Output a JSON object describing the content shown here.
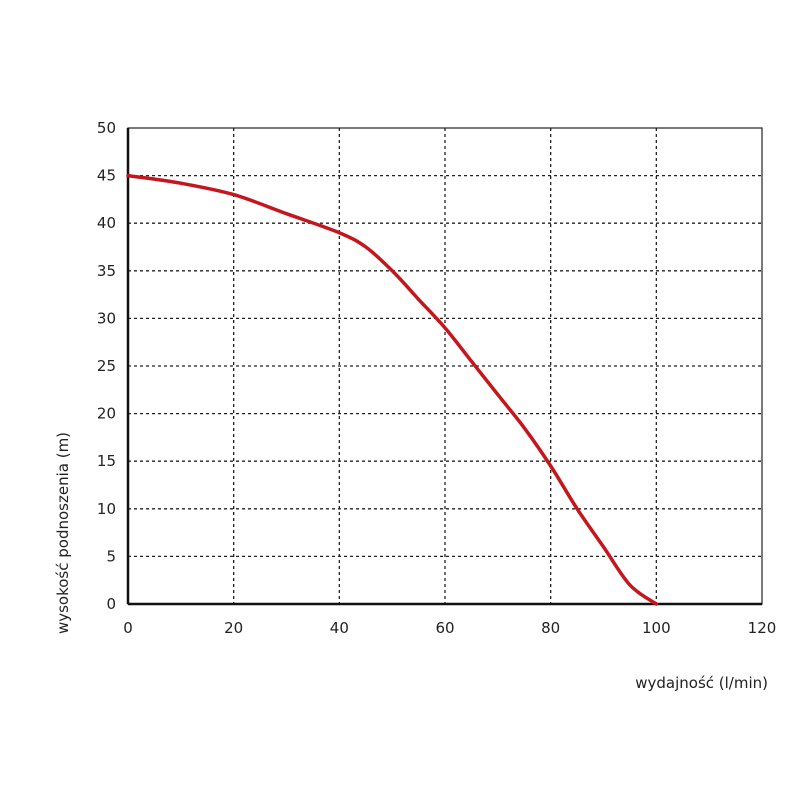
{
  "chart_data": {
    "type": "line",
    "title": "",
    "xlabel": "wydajność (l/min)",
    "ylabel": "wysokość podnoszenia (m)",
    "xlim": [
      0,
      120
    ],
    "ylim": [
      0,
      50
    ],
    "xticks": [
      0,
      20,
      40,
      60,
      80,
      100,
      120
    ],
    "yticks": [
      0,
      5,
      10,
      15,
      20,
      25,
      30,
      35,
      40,
      45,
      50
    ],
    "grid": true,
    "legend": "none",
    "series": [
      {
        "color": "#c4161c",
        "x": [
          0,
          10,
          20,
          30,
          40,
          45,
          50,
          55,
          60,
          65,
          70,
          75,
          80,
          85,
          90,
          95,
          100
        ],
        "y": [
          45,
          44.2,
          43,
          41,
          39,
          37.5,
          35,
          32,
          29,
          25.5,
          22,
          18.5,
          14.5,
          10,
          6,
          2,
          0
        ]
      }
    ]
  }
}
